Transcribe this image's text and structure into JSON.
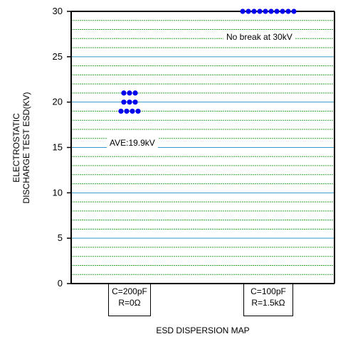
{
  "chart_data": {
    "type": "scatter",
    "ylabel_lines": [
      "ELECTROSTATIC",
      "DISCHARGE TEST ESD(KV)"
    ],
    "xlabel": "ESD DISPERSION MAP",
    "ylim": [
      0,
      30
    ],
    "yticks": [
      0,
      5,
      10,
      15,
      20,
      25,
      30
    ],
    "categories": [
      {
        "line1": "C=200pF",
        "line2": "R=0Ω"
      },
      {
        "line1": "C=100pF",
        "line2": "R=1.5kΩ"
      }
    ],
    "series": [
      {
        "category_index": 0,
        "values": [
          21,
          21,
          21,
          20,
          20,
          20,
          19,
          19,
          19,
          19
        ]
      },
      {
        "category_index": 1,
        "values": [
          30,
          30,
          30,
          30,
          30,
          30,
          30,
          30,
          30,
          30
        ]
      }
    ],
    "annotations": {
      "average": "AVE:19.9kV",
      "no_break": "No break at 30kV"
    },
    "grid": true,
    "colors": {
      "points": "#0000ee",
      "minor_grid": "#33aa33",
      "major_grid": "#3399cc",
      "axis": "#000000"
    }
  }
}
